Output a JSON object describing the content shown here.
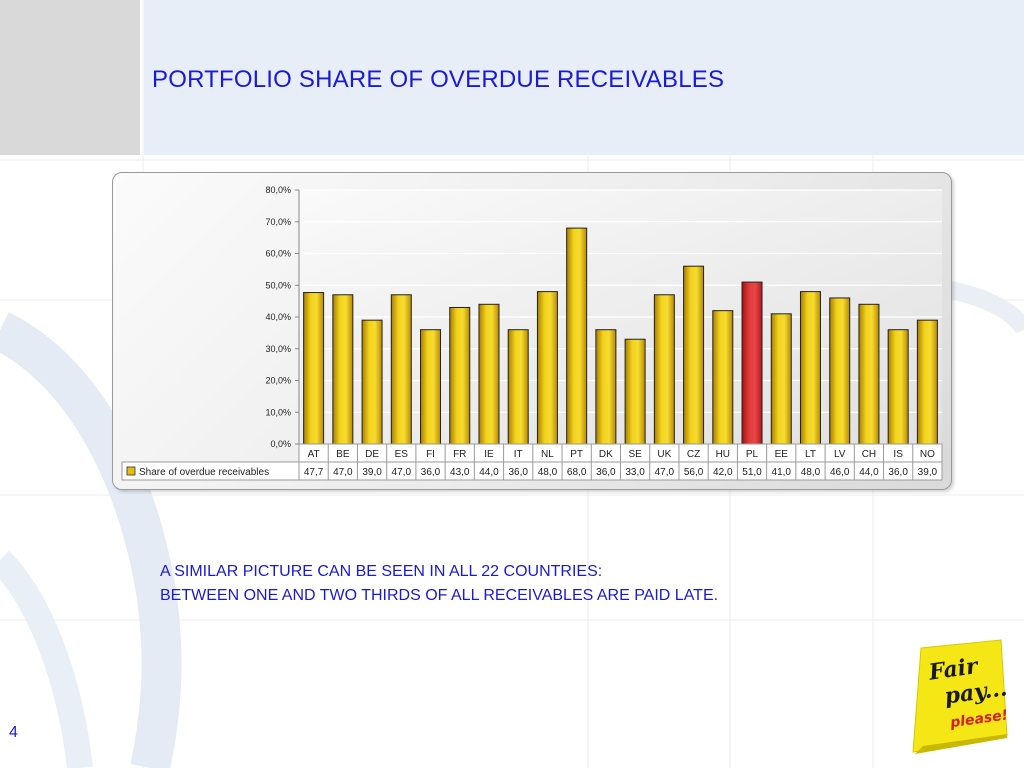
{
  "slide": {
    "title": "PORTFOLIO SHARE OF OVERDUE RECEIVABLES",
    "note_lines": [
      "A SIMILAR PICTURE CAN BE SEEN IN  ALL 22 COUNTRIES:",
      "BETWEEN ONE AND TWO THIRDS OF ALL RECEIVABLES ARE PAID LATE."
    ],
    "page_number": "4",
    "logo_text": [
      "Fair",
      "pay...",
      "please!"
    ]
  },
  "colors": {
    "bar": "#e8bc0c",
    "bar_highlight": "#d62828",
    "title": "#1a1ad6",
    "logo_yellow": "#f5e616"
  },
  "chart_data": {
    "type": "bar",
    "categories": [
      "AT",
      "BE",
      "DE",
      "ES",
      "FI",
      "FR",
      "IE",
      "IT",
      "NL",
      "PT",
      "DK",
      "SE",
      "UK",
      "CZ",
      "HU",
      "PL",
      "EE",
      "LT",
      "LV",
      "CH",
      "IS",
      "NO"
    ],
    "series": [
      {
        "name": "Share of overdue receivables",
        "values": [
          47.7,
          47.0,
          39.0,
          47.0,
          36.0,
          43.0,
          44.0,
          36.0,
          48.0,
          68.0,
          36.0,
          33.0,
          47.0,
          56.0,
          42.0,
          51.0,
          41.0,
          48.0,
          46.0,
          44.0,
          36.0,
          39.0
        ],
        "value_labels": [
          "47,7",
          "47,0",
          "39,0",
          "47,0",
          "36,0",
          "43,0",
          "44,0",
          "36,0",
          "48,0",
          "68,0",
          "36,0",
          "33,0",
          "47,0",
          "56,0",
          "42,0",
          "51,0",
          "41,0",
          "48,0",
          "46,0",
          "44,0",
          "36,0",
          "39,0"
        ]
      }
    ],
    "highlight_category": "PL",
    "ylim": [
      0,
      80
    ],
    "yticks": [
      "0,0%",
      "10,0%",
      "20,0%",
      "30,0%",
      "40,0%",
      "50,0%",
      "60,0%",
      "70,0%",
      "80,0%"
    ],
    "grid": true,
    "legend": "data-table-left"
  }
}
